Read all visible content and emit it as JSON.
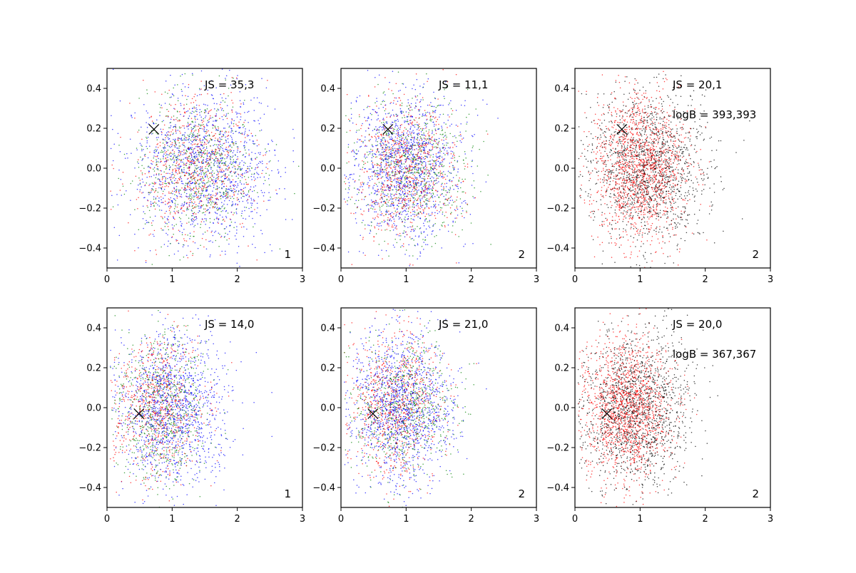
{
  "chart_data": [
    {
      "type": "scatter",
      "xlim": [
        0,
        3
      ],
      "ylim": [
        -0.5,
        0.5
      ],
      "x_ticks": [
        "0",
        "1",
        "2",
        "3"
      ],
      "y_ticks": [
        "−0.4",
        "−0.2",
        "0.0",
        "0.2",
        "0.4"
      ],
      "marker": {
        "x": 0.72,
        "y": 0.195
      },
      "annotations": [
        "JS = 35,3"
      ],
      "corner_label": "1",
      "series": [
        {
          "color": "#0000ff",
          "n": 1300,
          "mx": 1.5,
          "sx": 0.55,
          "my": 0.0,
          "sy": 0.19
        },
        {
          "color": "#ff0000",
          "n": 700,
          "mx": 1.35,
          "sx": 0.45,
          "my": 0.0,
          "sy": 0.18
        },
        {
          "color": "#008000",
          "n": 700,
          "mx": 1.4,
          "sx": 0.45,
          "my": 0.0,
          "sy": 0.18
        }
      ]
    },
    {
      "type": "scatter",
      "xlim": [
        0,
        3
      ],
      "ylim": [
        -0.5,
        0.5
      ],
      "x_ticks": [
        "0",
        "1",
        "2",
        "3"
      ],
      "y_ticks": [
        "−0.4",
        "−0.2",
        "0.0",
        "0.2",
        "0.4"
      ],
      "marker": {
        "x": 0.72,
        "y": 0.195
      },
      "annotations": [
        "JS = 11,1"
      ],
      "corner_label": "2",
      "series": [
        {
          "color": "#0000ff",
          "n": 1300,
          "mx": 1.0,
          "sx": 0.4,
          "my": 0.0,
          "sy": 0.19
        },
        {
          "color": "#ff0000",
          "n": 800,
          "mx": 1.0,
          "sx": 0.38,
          "my": 0.0,
          "sy": 0.18
        },
        {
          "color": "#008000",
          "n": 700,
          "mx": 1.1,
          "sx": 0.42,
          "my": 0.0,
          "sy": 0.18
        }
      ]
    },
    {
      "type": "scatter",
      "xlim": [
        0,
        3
      ],
      "ylim": [
        -0.5,
        0.5
      ],
      "x_ticks": [
        "0",
        "1",
        "2",
        "3"
      ],
      "y_ticks": [
        "−0.4",
        "−0.2",
        "0.0",
        "0.2",
        "0.4"
      ],
      "marker": {
        "x": 0.72,
        "y": 0.195
      },
      "annotations": [
        "JS = 20,1",
        "logB = 393,393"
      ],
      "corner_label": "2",
      "series": [
        {
          "color": "#000000",
          "n": 1500,
          "mx": 1.1,
          "sx": 0.45,
          "my": 0.0,
          "sy": 0.19
        },
        {
          "color": "#ff0000",
          "n": 1500,
          "mx": 1.0,
          "sx": 0.36,
          "my": 0.0,
          "sy": 0.18
        }
      ]
    },
    {
      "type": "scatter",
      "xlim": [
        0,
        3
      ],
      "ylim": [
        -0.5,
        0.5
      ],
      "x_ticks": [
        "0",
        "1",
        "2",
        "3"
      ],
      "y_ticks": [
        "−0.4",
        "−0.2",
        "0.0",
        "0.2",
        "0.4"
      ],
      "marker": {
        "x": 0.49,
        "y": -0.03
      },
      "annotations": [
        "JS = 14,0"
      ],
      "corner_label": "1",
      "series": [
        {
          "color": "#0000ff",
          "n": 1300,
          "mx": 1.0,
          "sx": 0.42,
          "my": 0.0,
          "sy": 0.19
        },
        {
          "color": "#ff0000",
          "n": 700,
          "mx": 0.8,
          "sx": 0.35,
          "my": 0.0,
          "sy": 0.18
        },
        {
          "color": "#008000",
          "n": 700,
          "mx": 0.85,
          "sx": 0.35,
          "my": 0.0,
          "sy": 0.18
        }
      ]
    },
    {
      "type": "scatter",
      "xlim": [
        0,
        3
      ],
      "ylim": [
        -0.5,
        0.5
      ],
      "x_ticks": [
        "0",
        "1",
        "2",
        "3"
      ],
      "y_ticks": [
        "−0.4",
        "−0.2",
        "0.0",
        "0.2",
        "0.4"
      ],
      "marker": {
        "x": 0.49,
        "y": -0.03
      },
      "annotations": [
        "JS = 21,0"
      ],
      "corner_label": "2",
      "series": [
        {
          "color": "#0000ff",
          "n": 1300,
          "mx": 0.95,
          "sx": 0.38,
          "my": 0.0,
          "sy": 0.19
        },
        {
          "color": "#ff0000",
          "n": 800,
          "mx": 0.85,
          "sx": 0.35,
          "my": 0.0,
          "sy": 0.18
        },
        {
          "color": "#008000",
          "n": 700,
          "mx": 1.0,
          "sx": 0.4,
          "my": 0.0,
          "sy": 0.18
        }
      ]
    },
    {
      "type": "scatter",
      "xlim": [
        0,
        3
      ],
      "ylim": [
        -0.5,
        0.5
      ],
      "x_ticks": [
        "0",
        "1",
        "2",
        "3"
      ],
      "y_ticks": [
        "−0.4",
        "−0.2",
        "0.0",
        "0.2",
        "0.4"
      ],
      "marker": {
        "x": 0.49,
        "y": -0.03
      },
      "annotations": [
        "JS = 20,0",
        "logB = 367,367"
      ],
      "corner_label": "2",
      "series": [
        {
          "color": "#000000",
          "n": 1500,
          "mx": 0.95,
          "sx": 0.42,
          "my": 0.0,
          "sy": 0.19
        },
        {
          "color": "#ff0000",
          "n": 1500,
          "mx": 0.8,
          "sx": 0.32,
          "my": 0.0,
          "sy": 0.18
        }
      ]
    }
  ]
}
